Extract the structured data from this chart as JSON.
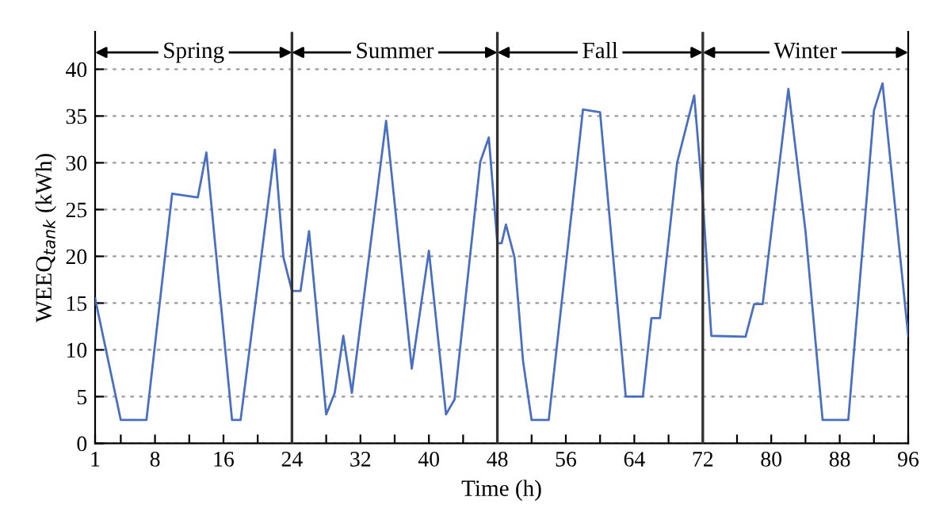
{
  "chart_data": {
    "type": "line",
    "xlabel": "Time (h)",
    "ylabel": "WEEQ$_{tank}$ (kWh)",
    "x": [
      1,
      4,
      7,
      10,
      13,
      14,
      17,
      18,
      22,
      23,
      24,
      25,
      26,
      28,
      29,
      30,
      31,
      35,
      38,
      40,
      42,
      43,
      46,
      47,
      48,
      48.5,
      49,
      50,
      51,
      52,
      54,
      58,
      60,
      63,
      65,
      66,
      67,
      69,
      71,
      72,
      73,
      77,
      78,
      79,
      82,
      84,
      86,
      89,
      92,
      93,
      96
    ],
    "series": [
      {
        "color": "#4a6fc1",
        "values": [
          15.5,
          2.5,
          2.5,
          26.7,
          26.3,
          31.1,
          2.5,
          2.5,
          31.4,
          19.9,
          16.3,
          16.3,
          22.7,
          3.1,
          5.4,
          11.5,
          5.4,
          34.5,
          8.0,
          20.6,
          3.1,
          4.7,
          30.1,
          32.7,
          21.4,
          21.4,
          23.4,
          19.9,
          8.8,
          2.5,
          2.5,
          35.7,
          35.4,
          5.0,
          5.0,
          13.4,
          13.4,
          30.0,
          37.2,
          26.1,
          11.5,
          11.4,
          14.9,
          14.9,
          37.9,
          22.7,
          2.5,
          2.5,
          35.6,
          38.5,
          11.5
        ]
      }
    ],
    "xlim": [
      1,
      96
    ],
    "ylim": [
      0,
      44
    ],
    "xticks": [
      1,
      {
        "value": 4,
        "label": null
      },
      8,
      {
        "value": 12,
        "label": null
      },
      16,
      {
        "value": 20,
        "label": null
      },
      24,
      {
        "value": 28,
        "label": null
      },
      32,
      {
        "value": 36,
        "label": null
      },
      40,
      {
        "value": 44,
        "label": null
      },
      48,
      {
        "value": 52,
        "label": null
      },
      56,
      {
        "value": 60,
        "label": null
      },
      64,
      {
        "value": 68,
        "label": null
      },
      72,
      {
        "value": 76,
        "label": null
      },
      80,
      {
        "value": 84,
        "label": null
      },
      88,
      {
        "value": 92,
        "label": null
      },
      96
    ],
    "yticks": [
      0,
      5,
      10,
      15,
      20,
      25,
      30,
      35,
      40
    ],
    "grid": "y",
    "line_style": "solid",
    "ref_lines": [
      {
        "axis": "x",
        "value": 24,
        "color": "#333333"
      },
      {
        "axis": "x",
        "value": 48,
        "color": "#333333"
      },
      {
        "axis": "x",
        "value": 72,
        "color": "#333333"
      }
    ],
    "annotations": [
      "Spring",
      "Summer",
      "Fall",
      "Winter"
    ]
  }
}
